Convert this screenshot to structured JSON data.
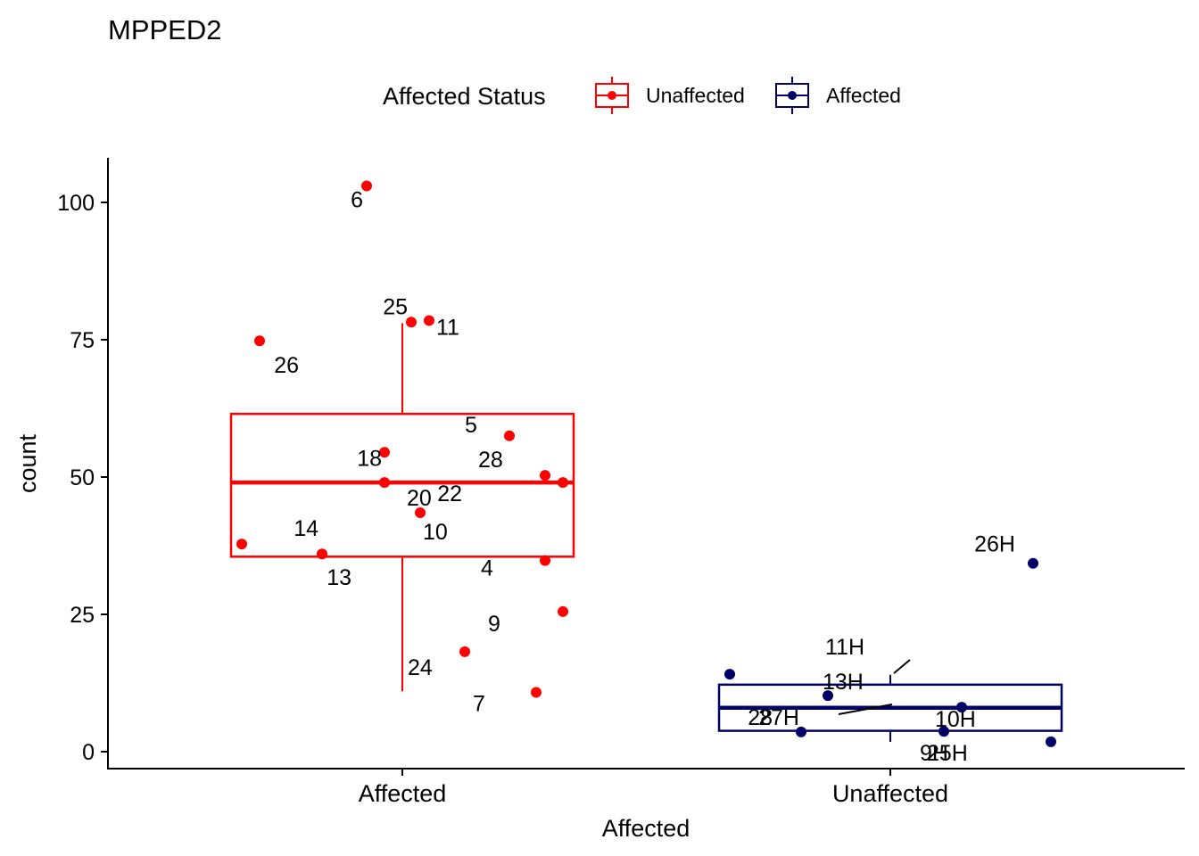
{
  "chart_data": {
    "type": "box",
    "title": "MPPED2",
    "xlabel": "Affected",
    "ylabel": "count",
    "ylim": [
      -3,
      108
    ],
    "yticks": [
      0,
      25,
      50,
      75,
      100
    ],
    "categories": [
      "Affected",
      "Unaffected"
    ],
    "grid": false,
    "legend": {
      "title": "Affected Status",
      "placement": "top",
      "entries": [
        {
          "name": "Unaffected",
          "color": "#ff0000"
        },
        {
          "name": "Affected",
          "color": "#000066"
        }
      ]
    },
    "series": [
      {
        "name": "Unaffected",
        "category": "Affected",
        "color": "#ff0000",
        "box": {
          "q1": 35.5,
          "median": 49,
          "q3": 61.5,
          "whisker_low": 11,
          "whisker_high": 78
        },
        "points": [
          {
            "x": -0.04,
            "y": 103,
            "label": "6"
          },
          {
            "x": 0.01,
            "y": 78.2,
            "label": "25"
          },
          {
            "x": 0.03,
            "y": 78.5,
            "label": "11"
          },
          {
            "x": -0.16,
            "y": 74.8,
            "label": "26"
          },
          {
            "x": 0.12,
            "y": 57.5,
            "label": "5"
          },
          {
            "x": -0.02,
            "y": 54.5,
            "label": "18"
          },
          {
            "x": 0.16,
            "y": 50.3,
            "label": "28"
          },
          {
            "x": 0.18,
            "y": 49,
            "label": "22"
          },
          {
            "x": -0.02,
            "y": 49,
            "label": "20"
          },
          {
            "x": 0.02,
            "y": 43.5,
            "label": "10"
          },
          {
            "x": -0.18,
            "y": 37.8,
            "label": "14"
          },
          {
            "x": -0.09,
            "y": 36,
            "label": "13"
          },
          {
            "x": 0.16,
            "y": 34.8,
            "label": "4"
          },
          {
            "x": 0.18,
            "y": 25.5,
            "label": "9"
          },
          {
            "x": 0.07,
            "y": 18.2,
            "label": "24"
          },
          {
            "x": 0.15,
            "y": 10.8,
            "label": "7"
          }
        ]
      },
      {
        "name": "Affected",
        "category": "Unaffected",
        "color": "#000066",
        "box": {
          "q1": 3.8,
          "median": 8,
          "q3": 12.2,
          "whisker_low": 1.8,
          "whisker_high": 14
        },
        "points": [
          {
            "x": 0.16,
            "y": 34.3,
            "label": "26H"
          },
          {
            "x": -0.18,
            "y": 14.1,
            "label": "11H"
          },
          {
            "x": -0.07,
            "y": 10.2,
            "label": "13H"
          },
          {
            "x": -0.1,
            "y": 3.6,
            "label": "27H"
          },
          {
            "x": 0.08,
            "y": 8.1,
            "label": "10H"
          },
          {
            "x": 0.06,
            "y": 3.7,
            "label": "25H"
          },
          {
            "x": 0.18,
            "y": 1.8,
            "label": "9H"
          }
        ],
        "extra_labels": [
          "28"
        ]
      }
    ]
  }
}
